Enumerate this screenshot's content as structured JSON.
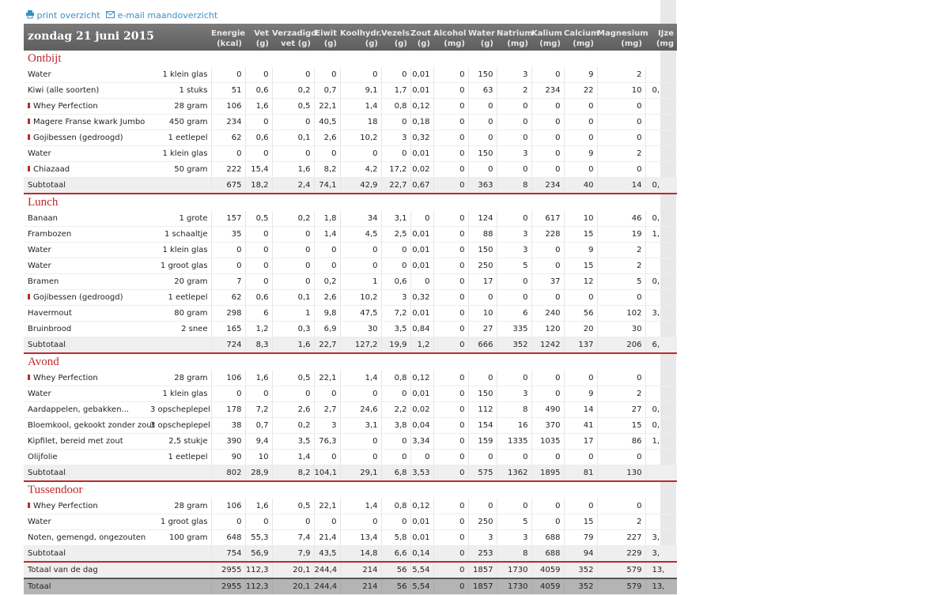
{
  "links": {
    "print": "print overzicht",
    "email": "e-mail maandoverzicht"
  },
  "date": "zondag 21 juni 2015",
  "columns": [
    {
      "title": "Energie",
      "unit": "(kcal)"
    },
    {
      "title": "Vet",
      "unit": "(g)"
    },
    {
      "title": "Verzadigd",
      "unit": "vet (g)"
    },
    {
      "title": "Eiwit",
      "unit": "(g)"
    },
    {
      "title": "Koolhydr.",
      "unit": "(g)"
    },
    {
      "title": "Vezels",
      "unit": "(g)"
    },
    {
      "title": "Zout",
      "unit": "(g)"
    },
    {
      "title": "Alcohol",
      "unit": "(mg)"
    },
    {
      "title": "Water",
      "unit": "(g)"
    },
    {
      "title": "Natrium",
      "unit": "(mg)"
    },
    {
      "title": "Kalium",
      "unit": "(mg)"
    },
    {
      "title": "Calcium",
      "unit": "(mg)"
    },
    {
      "title": "Magnesium",
      "unit": "(mg)"
    },
    {
      "title": "IJze",
      "unit": "(mg"
    }
  ],
  "sections": [
    {
      "title": "Ontbijt",
      "rows": [
        {
          "name": "Water",
          "amount": "1 klein glas",
          "values": [
            "0",
            "0",
            "0",
            "0",
            "0",
            "0",
            "0,01",
            "0",
            "150",
            "3",
            "0",
            "9",
            "2"
          ]
        },
        {
          "name": "Kiwi (alle soorten)",
          "amount": "1 stuks",
          "values": [
            "51",
            "0,6",
            "0,2",
            "0,7",
            "9,1",
            "1,7",
            "0,01",
            "0",
            "63",
            "2",
            "234",
            "22",
            "10"
          ],
          "ijzer": "0,"
        },
        {
          "name": "Whey Perfection",
          "flag": true,
          "amount": "28 gram",
          "values": [
            "106",
            "1,6",
            "0,5",
            "22,1",
            "1,4",
            "0,8",
            "0,12",
            "0",
            "0",
            "0",
            "0",
            "0",
            "0"
          ]
        },
        {
          "name": "Magere Franse kwark Jumbo",
          "flag": true,
          "amount": "450 gram",
          "values": [
            "234",
            "0",
            "0",
            "40,5",
            "18",
            "0",
            "0,18",
            "0",
            "0",
            "0",
            "0",
            "0",
            "0"
          ]
        },
        {
          "name": "Gojibessen (gedroogd)",
          "flag": true,
          "amount": "1 eetlepel",
          "values": [
            "62",
            "0,6",
            "0,1",
            "2,6",
            "10,2",
            "3",
            "0,32",
            "0",
            "0",
            "0",
            "0",
            "0",
            "0"
          ]
        },
        {
          "name": "Water",
          "amount": "1 klein glas",
          "values": [
            "0",
            "0",
            "0",
            "0",
            "0",
            "0",
            "0,01",
            "0",
            "150",
            "3",
            "0",
            "9",
            "2"
          ]
        },
        {
          "name": "Chiazaad",
          "flag": true,
          "amount": "50 gram",
          "values": [
            "222",
            "15,4",
            "1,6",
            "8,2",
            "4,2",
            "17,2",
            "0,02",
            "0",
            "0",
            "0",
            "0",
            "0",
            "0"
          ]
        }
      ],
      "subtotal": {
        "label": "Subtotaal",
        "values": [
          "675",
          "18,2",
          "2,4",
          "74,1",
          "42,9",
          "22,7",
          "0,67",
          "0",
          "363",
          "8",
          "234",
          "40",
          "14"
        ],
        "ijzer": "0,"
      }
    },
    {
      "title": "Lunch",
      "rows": [
        {
          "name": "Banaan",
          "amount": "1 grote",
          "values": [
            "157",
            "0,5",
            "0,2",
            "1,8",
            "34",
            "3,1",
            "0",
            "0",
            "124",
            "0",
            "617",
            "10",
            "46"
          ],
          "ijzer": "0,"
        },
        {
          "name": "Frambozen",
          "amount": "1 schaaltje",
          "values": [
            "35",
            "0",
            "0",
            "1,4",
            "4,5",
            "2,5",
            "0,01",
            "0",
            "88",
            "3",
            "228",
            "15",
            "19"
          ],
          "ijzer": "1,"
        },
        {
          "name": "Water",
          "amount": "1 klein glas",
          "values": [
            "0",
            "0",
            "0",
            "0",
            "0",
            "0",
            "0,01",
            "0",
            "150",
            "3",
            "0",
            "9",
            "2"
          ]
        },
        {
          "name": "Water",
          "amount": "1 groot glas",
          "values": [
            "0",
            "0",
            "0",
            "0",
            "0",
            "0",
            "0,01",
            "0",
            "250",
            "5",
            "0",
            "15",
            "2"
          ]
        },
        {
          "name": "Bramen",
          "amount": "20 gram",
          "values": [
            "7",
            "0",
            "0",
            "0,2",
            "1",
            "0,6",
            "0",
            "0",
            "17",
            "0",
            "37",
            "12",
            "5"
          ],
          "ijzer": "0,"
        },
        {
          "name": "Gojibessen (gedroogd)",
          "flag": true,
          "amount": "1 eetlepel",
          "values": [
            "62",
            "0,6",
            "0,1",
            "2,6",
            "10,2",
            "3",
            "0,32",
            "0",
            "0",
            "0",
            "0",
            "0",
            "0"
          ]
        },
        {
          "name": "Havermout",
          "amount": "80 gram",
          "values": [
            "298",
            "6",
            "1",
            "9,8",
            "47,5",
            "7,2",
            "0,01",
            "0",
            "10",
            "6",
            "240",
            "56",
            "102"
          ],
          "ijzer": "3,"
        },
        {
          "name": "Bruinbrood",
          "amount": "2 snee",
          "values": [
            "165",
            "1,2",
            "0,3",
            "6,9",
            "30",
            "3,5",
            "0,84",
            "0",
            "27",
            "335",
            "120",
            "20",
            "30"
          ]
        }
      ],
      "subtotal": {
        "label": "Subtotaal",
        "values": [
          "724",
          "8,3",
          "1,6",
          "22,7",
          "127,2",
          "19,9",
          "1,2",
          "0",
          "666",
          "352",
          "1242",
          "137",
          "206"
        ],
        "ijzer": "6,"
      }
    },
    {
      "title": "Avond",
      "rows": [
        {
          "name": "Whey Perfection",
          "flag": true,
          "amount": "28 gram",
          "values": [
            "106",
            "1,6",
            "0,5",
            "22,1",
            "1,4",
            "0,8",
            "0,12",
            "0",
            "0",
            "0",
            "0",
            "0",
            "0"
          ]
        },
        {
          "name": "Water",
          "amount": "1 klein glas",
          "values": [
            "0",
            "0",
            "0",
            "0",
            "0",
            "0",
            "0,01",
            "0",
            "150",
            "3",
            "0",
            "9",
            "2"
          ]
        },
        {
          "name": "Aardappelen, gebakken...",
          "amount": "3 opscheplepel",
          "values": [
            "178",
            "7,2",
            "2,6",
            "2,7",
            "24,6",
            "2,2",
            "0,02",
            "0",
            "112",
            "8",
            "490",
            "14",
            "27"
          ],
          "ijzer": "0,"
        },
        {
          "name": "Bloemkool, gekookt zonder zout",
          "amount": "3 opscheplepel",
          "values": [
            "38",
            "0,7",
            "0,2",
            "3",
            "3,1",
            "3,8",
            "0,04",
            "0",
            "154",
            "16",
            "370",
            "41",
            "15"
          ],
          "ijzer": "0,"
        },
        {
          "name": "Kipfilet, bereid met zout",
          "amount": "2,5 stukje",
          "values": [
            "390",
            "9,4",
            "3,5",
            "76,3",
            "0",
            "0",
            "3,34",
            "0",
            "159",
            "1335",
            "1035",
            "17",
            "86"
          ],
          "ijzer": "1,"
        },
        {
          "name": "Olijfolie",
          "amount": "1 eetlepel",
          "values": [
            "90",
            "10",
            "1,4",
            "0",
            "0",
            "0",
            "0",
            "0",
            "0",
            "0",
            "0",
            "0",
            "0"
          ]
        }
      ],
      "subtotal": {
        "label": "Subtotaal",
        "values": [
          "802",
          "28,9",
          "8,2",
          "104,1",
          "29,1",
          "6,8",
          "3,53",
          "0",
          "575",
          "1362",
          "1895",
          "81",
          "130"
        ]
      }
    },
    {
      "title": "Tussendoor",
      "rows": [
        {
          "name": "Whey Perfection",
          "flag": true,
          "amount": "28 gram",
          "values": [
            "106",
            "1,6",
            "0,5",
            "22,1",
            "1,4",
            "0,8",
            "0,12",
            "0",
            "0",
            "0",
            "0",
            "0",
            "0"
          ]
        },
        {
          "name": "Water",
          "amount": "1 groot glas",
          "values": [
            "0",
            "0",
            "0",
            "0",
            "0",
            "0",
            "0,01",
            "0",
            "250",
            "5",
            "0",
            "15",
            "2"
          ]
        },
        {
          "name": "Noten, gemengd, ongezouten",
          "amount": "100 gram",
          "values": [
            "648",
            "55,3",
            "7,4",
            "21,4",
            "13,4",
            "5,8",
            "0,01",
            "0",
            "3",
            "3",
            "688",
            "79",
            "227"
          ],
          "ijzer": "3,"
        }
      ],
      "subtotal": {
        "label": "Subtotaal",
        "values": [
          "754",
          "56,9",
          "7,9",
          "43,5",
          "14,8",
          "6,6",
          "0,14",
          "0",
          "253",
          "8",
          "688",
          "94",
          "229"
        ],
        "ijzer": "3,"
      }
    }
  ],
  "totals": [
    {
      "label": "Totaal van de dag",
      "values": [
        "2955",
        "112,3",
        "20,1",
        "244,4",
        "214",
        "56",
        "5,54",
        "0",
        "1857",
        "1730",
        "4059",
        "352",
        "579"
      ],
      "ijzer": "13,"
    },
    {
      "label": "Totaal",
      "values": [
        "2955",
        "112,3",
        "20,1",
        "244,4",
        "214",
        "56",
        "5,54",
        "0",
        "1857",
        "1730",
        "4059",
        "352",
        "579"
      ],
      "ijzer": "13,"
    }
  ]
}
